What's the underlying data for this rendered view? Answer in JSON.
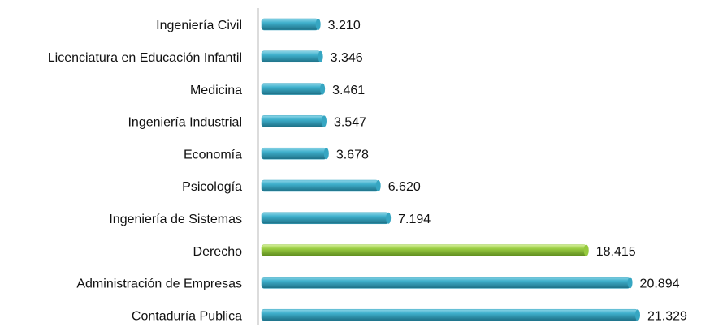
{
  "chart_data": {
    "type": "bar",
    "orientation": "horizontal",
    "categories": [
      "Ingeniería Civil",
      "Licenciatura en Educación Infantil",
      "Medicina",
      "Ingeniería Industrial",
      "Economía",
      "Psicología",
      "Ingeniería de Sistemas",
      "Derecho",
      "Administración de Empresas",
      "Contaduría Publica"
    ],
    "values": [
      3210,
      3346,
      3461,
      3547,
      3678,
      6620,
      7194,
      18415,
      20894,
      21329
    ],
    "value_labels": [
      "3.210",
      "3.346",
      "3.461",
      "3.547",
      "3.678",
      "6.620",
      "7.194",
      "18.415",
      "20.894",
      "21.329"
    ],
    "colors": [
      "#36a6c2",
      "#36a6c2",
      "#36a6c2",
      "#36a6c2",
      "#36a6c2",
      "#36a6c2",
      "#36a6c2",
      "#96c93d",
      "#36a6c2",
      "#36a6c2"
    ]
  }
}
